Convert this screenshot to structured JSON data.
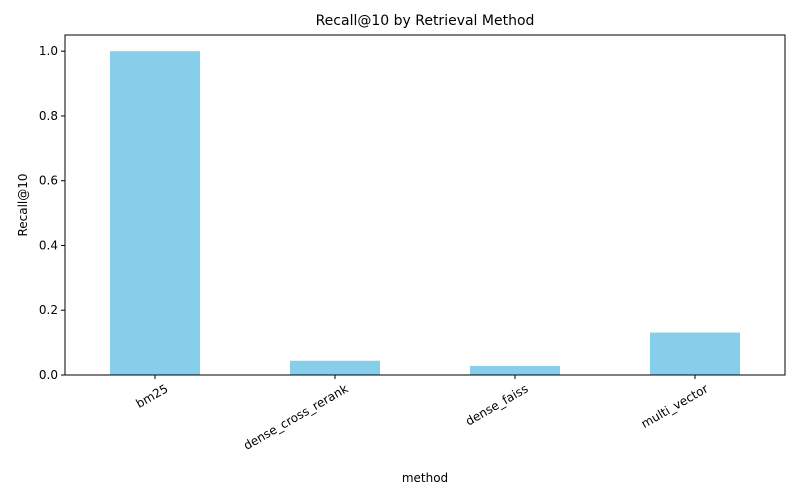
{
  "chart_data": {
    "type": "bar",
    "title": "Recall@10 by Retrieval Method",
    "xlabel": "method",
    "ylabel": "Recall@10",
    "categories": [
      "bm25",
      "dense_cross_rerank",
      "dense_faiss",
      "multi_vector"
    ],
    "values": [
      1.0,
      0.044,
      0.028,
      0.131
    ],
    "ylim": [
      0,
      1.05
    ],
    "yticks": [
      "0.0",
      "0.2",
      "0.4",
      "0.6",
      "0.8",
      "1.0"
    ],
    "grid": false,
    "legend": "none",
    "bar_color": "#87ceeb"
  }
}
